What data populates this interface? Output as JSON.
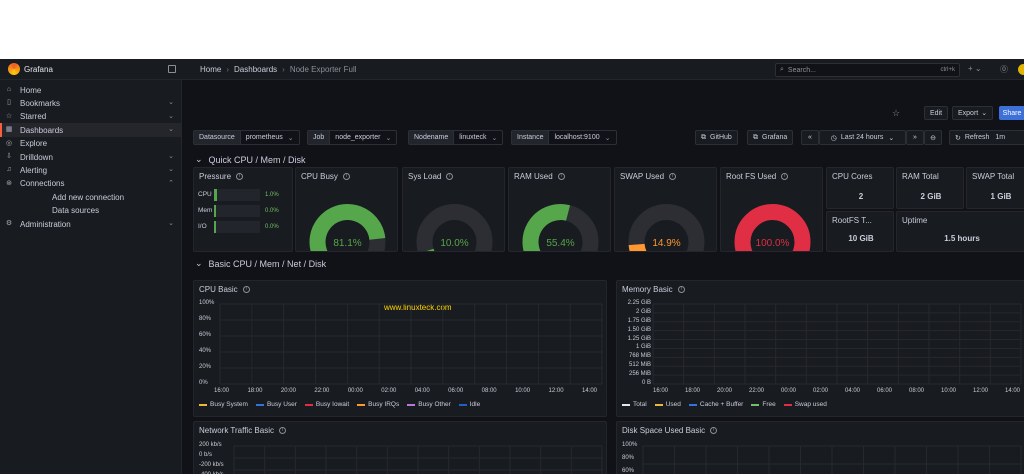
{
  "app": {
    "name": "Grafana"
  },
  "breadcrumb": {
    "home": "Home",
    "dashboards": "Dashboards",
    "current": "Node Exporter Full"
  },
  "search": {
    "placeholder": "Search...",
    "shortcut": "ctrl+k"
  },
  "topbar_icons": [
    "plus-icon",
    "help-icon"
  ],
  "sidebar": {
    "items": [
      {
        "label": "Home",
        "icon": "home-icon"
      },
      {
        "label": "Bookmarks",
        "icon": "bookmark-icon",
        "chevron": "⌄"
      },
      {
        "label": "Starred",
        "icon": "star-icon",
        "chevron": "⌄"
      },
      {
        "label": "Dashboards",
        "icon": "dashboard-icon",
        "chevron": "⌄",
        "active": true
      },
      {
        "label": "Explore",
        "icon": "compass-icon"
      },
      {
        "label": "Drilldown",
        "icon": "drilldown-icon",
        "chevron": "⌄"
      },
      {
        "label": "Alerting",
        "icon": "bell-icon",
        "chevron": "⌄"
      },
      {
        "label": "Connections",
        "icon": "connections-icon",
        "chevron": "⌃"
      },
      {
        "label": "Add new connection",
        "sub": true
      },
      {
        "label": "Data sources",
        "sub": true
      },
      {
        "label": "Administration",
        "icon": "gear-icon",
        "chevron": "⌄"
      }
    ]
  },
  "toolbar": {
    "edit": "Edit",
    "export": "Export",
    "share": "Share"
  },
  "variables": [
    {
      "label": "Datasource",
      "value": "prometheus"
    },
    {
      "label": "Job",
      "value": "node_exporter"
    },
    {
      "label": "Nodename",
      "value": "linuxteck"
    },
    {
      "label": "Instance",
      "value": "localhost:9100"
    }
  ],
  "links": {
    "github": "GitHub",
    "grafana": "Grafana"
  },
  "time": {
    "range": "Last 24 hours",
    "refresh": "Refresh",
    "interval": "1m"
  },
  "rows": {
    "quick": "Quick CPU / Mem / Disk",
    "basic": "Basic CPU / Mem / Net / Disk"
  },
  "pressure": {
    "title": "Pressure",
    "rows": [
      {
        "label": "CPU",
        "value": "1.0%",
        "fraction": 0.01
      },
      {
        "label": "Mem",
        "value": "0.0%",
        "fraction": 0.0
      },
      {
        "label": "I/O",
        "value": "0.0%",
        "fraction": 0.0
      }
    ]
  },
  "gauges": [
    {
      "title": "CPU Busy",
      "value": "81.1%",
      "fraction": 0.811,
      "color": "#56a64b"
    },
    {
      "title": "Sys Load",
      "value": "10.0%",
      "fraction": 0.1,
      "color": "#56a64b"
    },
    {
      "title": "RAM Used",
      "value": "55.4%",
      "fraction": 0.554,
      "color": "#56a64b"
    },
    {
      "title": "SWAP Used",
      "value": "14.9%",
      "fraction": 0.149,
      "color": "#ff9830"
    },
    {
      "title": "Root FS Used",
      "value": "100.0%",
      "fraction": 1.0,
      "color": "#e02f44"
    }
  ],
  "stats": {
    "cpu_cores": {
      "title": "CPU Cores",
      "value": "2"
    },
    "ram_total": {
      "title": "RAM Total",
      "value": "2 GiB"
    },
    "swap_total": {
      "title": "SWAP Total",
      "value": "1 GiB"
    },
    "rootfs_total": {
      "title": "RootFS T...",
      "value": "10 GiB"
    },
    "uptime": {
      "title": "Uptime",
      "value": "1.5 hours"
    }
  },
  "cpu_basic": {
    "title": "CPU Basic",
    "watermark": "www.linuxteck.com",
    "yticks": [
      "100%",
      "80%",
      "60%",
      "40%",
      "20%",
      "0%"
    ],
    "xticks": [
      "16:00",
      "18:00",
      "20:00",
      "22:00",
      "00:00",
      "02:00",
      "04:00",
      "06:00",
      "08:00",
      "10:00",
      "12:00",
      "14:00"
    ],
    "legend": [
      {
        "name": "Busy System",
        "color": "#eab839"
      },
      {
        "name": "Busy User",
        "color": "#3274d9"
      },
      {
        "name": "Busy Iowait",
        "color": "#e02f44"
      },
      {
        "name": "Busy IRQs",
        "color": "#ff9830"
      },
      {
        "name": "Busy Other",
        "color": "#b877d9"
      },
      {
        "name": "Idle",
        "color": "#1f60c4"
      }
    ]
  },
  "memory_basic": {
    "title": "Memory Basic",
    "yticks": [
      "2.25 GiB",
      "2 GiB",
      "1.75 GiB",
      "1.50 GiB",
      "1.25 GiB",
      "1 GiB",
      "768 MiB",
      "512 MiB",
      "256 MiB",
      "0 B"
    ],
    "xticks": [
      "16:00",
      "18:00",
      "20:00",
      "22:00",
      "00:00",
      "02:00",
      "04:00",
      "06:00",
      "08:00",
      "10:00",
      "12:00",
      "14:00"
    ],
    "legend": [
      {
        "name": "Total",
        "color": "#e6e6ef"
      },
      {
        "name": "Used",
        "color": "#eab839"
      },
      {
        "name": "Cache + Buffer",
        "color": "#3274d9"
      },
      {
        "name": "Free",
        "color": "#73bf69"
      },
      {
        "name": "Swap used",
        "color": "#e02f44"
      }
    ]
  },
  "network_basic": {
    "title": "Network Traffic Basic",
    "yticks": [
      "200 kb/s",
      "0 b/s",
      "-200 kb/s",
      "-400 kb/s"
    ]
  },
  "disk_basic": {
    "title": "Disk Space Used Basic",
    "yticks": [
      "100%",
      "80%",
      "60%"
    ]
  }
}
